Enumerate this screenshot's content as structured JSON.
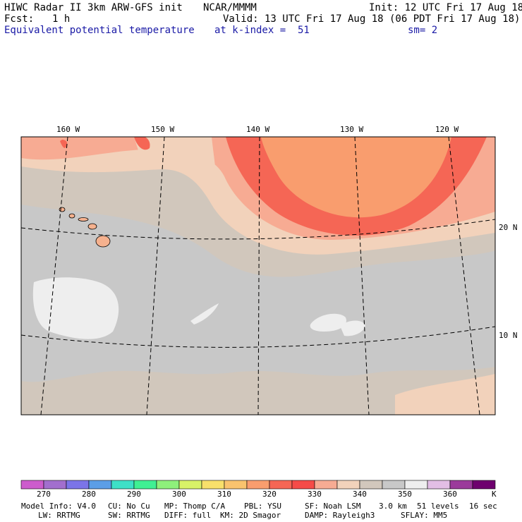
{
  "header": {
    "title": "HIWC Radar II 3km ARW-GFS init",
    "source": "NCAR/MMMM",
    "init": "Init: 12 UTC Fri 17 Aug 18",
    "fcst_label": "Fcst:",
    "fcst_value": "1 h",
    "valid": "Valid: 13 UTC Fri 17 Aug 18 (06 PDT Fri 17 Aug 18)",
    "field": "Equivalent potential temperature",
    "level": "at k-index =  51",
    "smoothing": "sm= 2"
  },
  "map": {
    "lon_labels": [
      "160 W",
      "150 W",
      "140 W",
      "130 W",
      "120 W"
    ],
    "lat_labels": [
      "20 N",
      "10 N"
    ],
    "colors": {
      "bg_low": "#d1c7bc",
      "grey": "#c8c8c8",
      "light": "#eeeeee",
      "tan": "#f2d2bb",
      "salmon": "#f7ab93",
      "red": "#f56655",
      "orange": "#f99d6e",
      "island": "#f5b18e"
    }
  },
  "colorbar": {
    "labels": [
      "270",
      "280",
      "290",
      "300",
      "310",
      "320",
      "330",
      "340",
      "350",
      "360"
    ],
    "unit": "K",
    "colors": [
      "#cc5ccc",
      "#a26fce",
      "#7b74e8",
      "#5c9ee6",
      "#3ee0c7",
      "#40f093",
      "#8ef07b",
      "#d8f268",
      "#f8e06b",
      "#f9c36e",
      "#f99d6e",
      "#f56655",
      "#f54b48",
      "#f7ab93",
      "#f2d2bb",
      "#d1c7bc",
      "#c8c8c8",
      "#eeeeee",
      "#e2bee5",
      "#9b3a9b",
      "#6e006e"
    ]
  },
  "footer": {
    "line1": [
      "Model Info: V4.0",
      "CU: No Cu",
      "MP: Thomp C/A",
      "PBL: YSU",
      "SF: Noah LSM",
      "3.0 km",
      "51 levels",
      "16 sec"
    ],
    "line2": [
      "LW: RRTMG",
      "SW: RRTMG",
      "DIFF: full",
      "KM: 2D Smagor",
      "DAMP: Rayleigh3",
      "SFLAY: MM5"
    ]
  }
}
